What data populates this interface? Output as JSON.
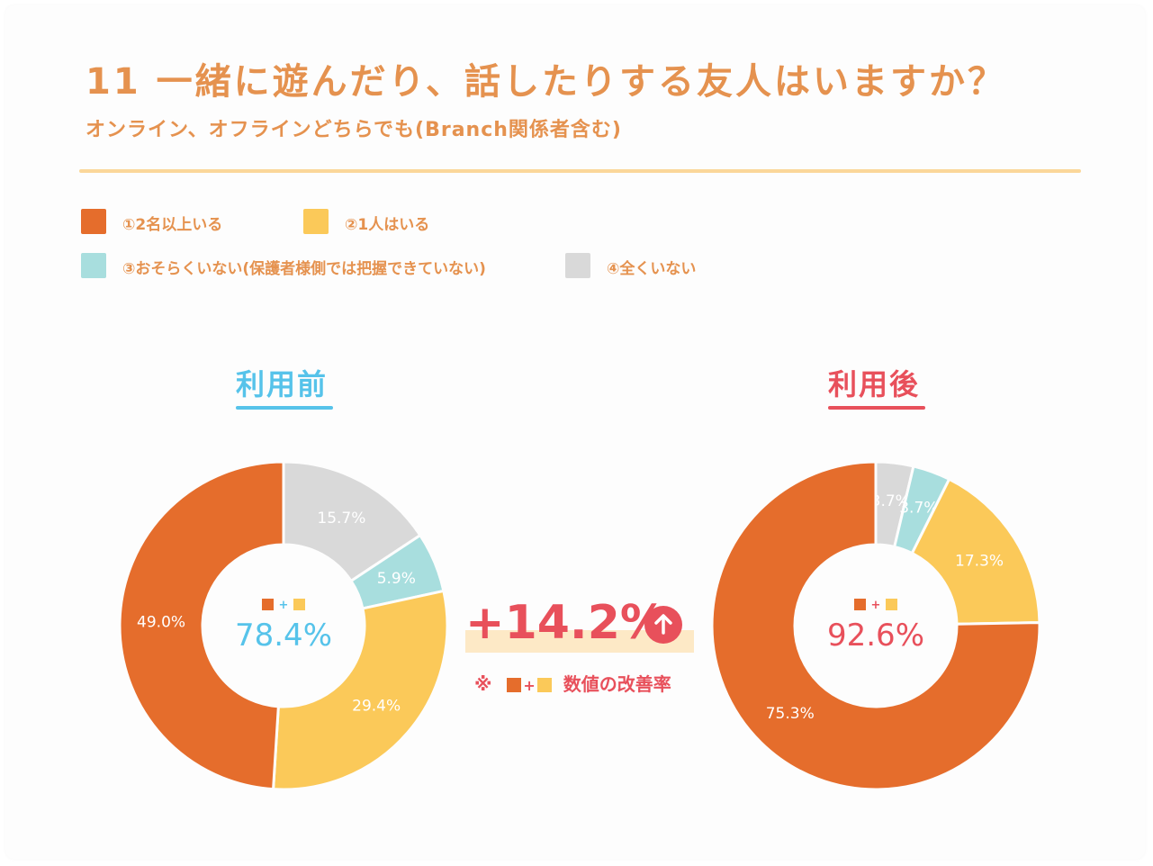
{
  "header": {
    "title": "11 一緒に遊んだり、話したりする友人はいますか？",
    "subtitle": "オンライン、オフラインどちらでも(Branch関係者含む)"
  },
  "legend": [
    {
      "label": "①2名以上いる",
      "color": "#e56d2c"
    },
    {
      "label": "②1人はいる",
      "color": "#fbc959"
    },
    {
      "label": "③おそらくいない(保護者様側では把握できていない)",
      "color": "#a8dede"
    },
    {
      "label": "④全くいない",
      "color": "#d9d9d9"
    }
  ],
  "comparison": {
    "improvement": "+14.2%",
    "arrow_icon": "up-arrow-icon",
    "note_prefix": "※",
    "note_plus": "+",
    "note_text": "数値の改善率"
  },
  "chart_data": [
    {
      "type": "pie",
      "title": "利用前",
      "title_color": "#56c3ea",
      "center_value": "78.4%",
      "center_plus": "+",
      "slices": [
        {
          "name": "④全くいない",
          "value": 15.7,
          "label": "15.7%",
          "color": "#d9d9d9"
        },
        {
          "name": "③おそらくいない(保護者様側では把握できていない)",
          "value": 5.9,
          "label": "5.9%",
          "color": "#a8dede"
        },
        {
          "name": "②1人はいる",
          "value": 29.4,
          "label": "29.4%",
          "color": "#fbc959"
        },
        {
          "name": "①2名以上いる",
          "value": 49.0,
          "label": "49.0%",
          "color": "#e56d2c"
        }
      ]
    },
    {
      "type": "pie",
      "title": "利用後",
      "title_color": "#e8505b",
      "center_value": "92.6%",
      "center_plus": "+",
      "slices": [
        {
          "name": "④全くいない",
          "value": 3.7,
          "label": "3.7%",
          "color": "#d9d9d9"
        },
        {
          "name": "③おそらくいない(保護者様側では把握できていない)",
          "value": 3.7,
          "label": "3.7%",
          "color": "#a8dede"
        },
        {
          "name": "②1人はいる",
          "value": 17.3,
          "label": "17.3%",
          "color": "#fbc959"
        },
        {
          "name": "①2名以上いる",
          "value": 75.3,
          "label": "75.3%",
          "color": "#e56d2c"
        }
      ]
    }
  ]
}
